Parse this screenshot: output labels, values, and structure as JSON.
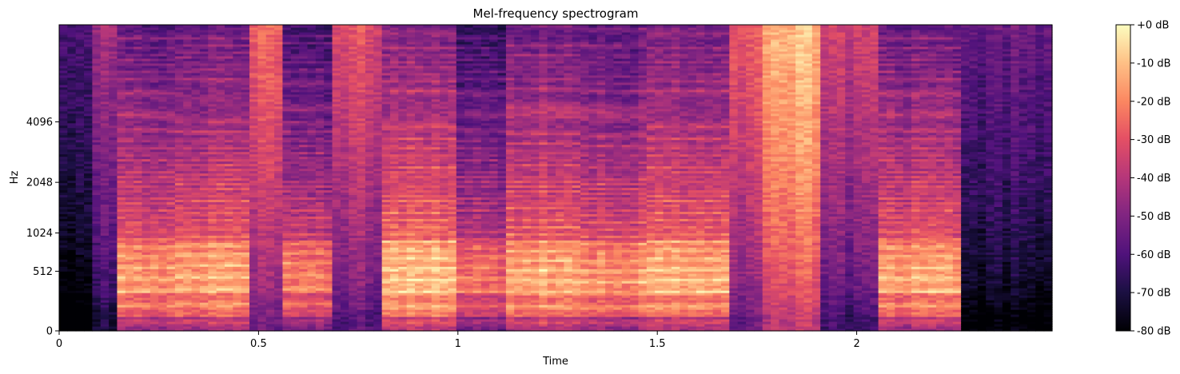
{
  "chart_data": {
    "type": "heatmap",
    "title": "Mel-frequency spectrogram",
    "xlabel": "Time",
    "ylabel": "Hz",
    "xlim": [
      0,
      2.49
    ],
    "x_ticks": [
      {
        "value": 0,
        "label": "0"
      },
      {
        "value": 0.5,
        "label": "0.5"
      },
      {
        "value": 1,
        "label": "1"
      },
      {
        "value": 1.5,
        "label": "1.5"
      },
      {
        "value": 2,
        "label": "2"
      }
    ],
    "y_scale": "mel",
    "ylim": [
      0,
      11025
    ],
    "y_ticks": [
      {
        "value": 0,
        "label": "0"
      },
      {
        "value": 512,
        "label": "512"
      },
      {
        "value": 1024,
        "label": "1024"
      },
      {
        "value": 2048,
        "label": "2048"
      },
      {
        "value": 4096,
        "label": "4096"
      }
    ],
    "colormap": "magma",
    "colorbar": {
      "range": [
        -80,
        0
      ],
      "ticks": [
        {
          "value": 0,
          "label": "+0 dB"
        },
        {
          "value": -10,
          "label": "-10 dB"
        },
        {
          "value": -20,
          "label": "-20 dB"
        },
        {
          "value": -30,
          "label": "-30 dB"
        },
        {
          "value": -40,
          "label": "-40 dB"
        },
        {
          "value": -50,
          "label": "-50 dB"
        },
        {
          "value": -60,
          "label": "-60 dB"
        },
        {
          "value": -70,
          "label": "-70 dB"
        },
        {
          "value": -80,
          "label": "-80 dB"
        }
      ]
    },
    "segments": [
      {
        "start": 0.0,
        "end": 0.08,
        "level_db": -76,
        "pitch_hz": 0
      },
      {
        "start": 0.08,
        "end": 0.14,
        "level_db": -58,
        "pitch_hz": 0
      },
      {
        "start": 0.14,
        "end": 0.3,
        "level_db": -22,
        "pitch_hz": 125
      },
      {
        "start": 0.3,
        "end": 0.48,
        "level_db": -20,
        "pitch_hz": 130
      },
      {
        "start": 0.48,
        "end": 0.55,
        "level_db": -38,
        "pitch_hz": 0
      },
      {
        "start": 0.55,
        "end": 0.68,
        "level_db": -28,
        "pitch_hz": 135
      },
      {
        "start": 0.68,
        "end": 0.8,
        "level_db": -45,
        "pitch_hz": 0
      },
      {
        "start": 0.8,
        "end": 1.0,
        "level_db": -14,
        "pitch_hz": 120
      },
      {
        "start": 1.0,
        "end": 1.12,
        "level_db": -30,
        "pitch_hz": 125
      },
      {
        "start": 1.12,
        "end": 1.3,
        "level_db": -18,
        "pitch_hz": 118
      },
      {
        "start": 1.3,
        "end": 1.48,
        "level_db": -22,
        "pitch_hz": 115
      },
      {
        "start": 1.48,
        "end": 1.68,
        "level_db": -18,
        "pitch_hz": 120
      },
      {
        "start": 1.68,
        "end": 1.77,
        "level_db": -42,
        "pitch_hz": 0
      },
      {
        "start": 1.77,
        "end": 1.9,
        "level_db": -24,
        "pitch_hz": 0
      },
      {
        "start": 1.9,
        "end": 2.05,
        "level_db": -50,
        "pitch_hz": 0
      },
      {
        "start": 2.05,
        "end": 2.27,
        "level_db": -20,
        "pitch_hz": 125
      },
      {
        "start": 2.27,
        "end": 2.49,
        "level_db": -68,
        "pitch_hz": 0
      }
    ]
  }
}
